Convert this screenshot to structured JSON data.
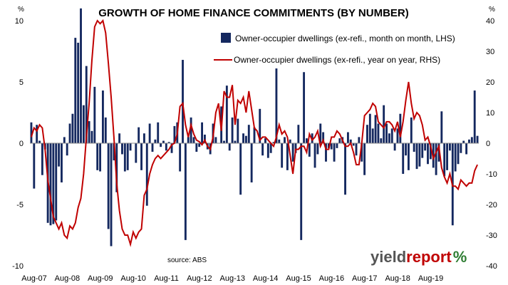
{
  "chart_data": {
    "type": "bar",
    "title": "GROWTH OF HOME FINANCE COMMITMENTS (BY NUMBER)",
    "y_left_unit": "%",
    "y_right_unit": "%",
    "ylim_left": [
      -10,
      10
    ],
    "ylim_right": [
      -40,
      40
    ],
    "y_left_ticks": [
      -10,
      -5,
      0,
      5,
      10
    ],
    "y_right_ticks": [
      -40,
      -30,
      -20,
      -10,
      0,
      10,
      20,
      30,
      40
    ],
    "x_tick_labels": [
      "Aug-07",
      "Aug-08",
      "Aug-09",
      "Aug-10",
      "Aug-11",
      "Aug-12",
      "Aug-13",
      "Aug-14",
      "Aug-15",
      "Aug-16",
      "Aug-17",
      "Aug-18",
      "Aug-19"
    ],
    "x_start": "Aug-07",
    "legend_position": "top-right",
    "grid": false,
    "series": [
      {
        "name": "Owner-occupier dwellings (ex-refi., month on month, LHS)",
        "type": "bar",
        "axis": "left",
        "color": "#14285f",
        "values": [
          1.7,
          -3.7,
          1.5,
          0.2,
          -2.6,
          -0.5,
          -6.5,
          -6.7,
          -6.6,
          -6.3,
          -1.9,
          -3.2,
          0.5,
          -1.0,
          1.6,
          2.4,
          8.6,
          8.2,
          11.0,
          3.1,
          6.3,
          1.8,
          1.0,
          4.6,
          -2.2,
          -2.3,
          4.3,
          2.1,
          -7.0,
          -8.4,
          -1.4,
          -4.0,
          0.8,
          -0.9,
          -2.3,
          -2.2,
          -0.6,
          0.0,
          -1.6,
          1.3,
          -2.2,
          0.8,
          -5.1,
          1.6,
          -0.7,
          0.3,
          1.7,
          -0.3,
          0.2,
          -0.6,
          0.1,
          -0.8,
          1.4,
          1.7,
          -2.3,
          6.8,
          -7.9,
          0.5,
          2.1,
          0.5,
          -0.7,
          -0.3,
          1.7,
          0.7,
          -0.5,
          -0.9,
          1.6,
          0.5,
          0.0,
          3.0,
          0.2,
          4.7,
          -0.6,
          2.1,
          0.2,
          2.0,
          -4.2,
          0.8,
          0.6,
          1.5,
          -3.2,
          1.3,
          0.0,
          2.8,
          -1.0,
          0.4,
          -1.2,
          -0.8,
          0.1,
          6.1,
          0.3,
          -2.0,
          0.5,
          -2.2,
          0.3,
          -1.5,
          -0.8,
          1.5,
          -7.9,
          5.8,
          0.4,
          -1.1,
          0.8,
          -2.0,
          -0.9,
          1.6,
          0.9,
          -1.5,
          -0.4,
          -0.5,
          -1.5,
          -0.4,
          0.4,
          0.5,
          -4.2,
          0.9,
          0.3,
          -0.2,
          -1.0,
          0.5,
          -1.5,
          -2.6,
          1.5,
          2.4,
          1.2,
          2.3,
          1.6,
          0.4,
          3.1,
          1.6,
          0.8,
          1.2,
          -0.6,
          1.2,
          2.4,
          -2.5,
          -1.0,
          -2.2,
          2.1,
          -0.7,
          -2.1,
          -1.9,
          -1.2,
          -0.6,
          -1.7,
          -1.3,
          -2.0,
          -2.6,
          -1.5,
          2.6,
          -2.7,
          -2.2,
          -0.6,
          -6.7,
          -2.3,
          -1.7,
          -0.8,
          0.2,
          -0.9,
          0.3,
          0.5,
          4.3,
          0.6
        ]
      },
      {
        "name": "Owner-occupier dwellings (ex-refi., year on year, RHS)",
        "type": "line",
        "axis": "right",
        "color": "#c00000",
        "values": [
          2.0,
          5.0,
          4.0,
          6.0,
          5.0,
          -2.0,
          -12.0,
          -18.0,
          -24.0,
          -26.0,
          -28.0,
          -26.0,
          -30.0,
          -31.0,
          -27.0,
          -28.0,
          -26.0,
          -21.0,
          -18.0,
          -10.0,
          2.0,
          13.0,
          27.0,
          38.0,
          40.0,
          39.0,
          40.0,
          36.0,
          26.0,
          15.0,
          2.0,
          -13.0,
          -22.0,
          -28.0,
          -30.0,
          -30.0,
          -33.0,
          -29.0,
          -31.0,
          -29.0,
          -28.0,
          -17.0,
          -15.0,
          -10.0,
          -7.0,
          -5.0,
          -4.0,
          -5.0,
          -4.0,
          -3.0,
          -2.0,
          -0.5,
          0.0,
          3.0,
          12.0,
          13.0,
          6.0,
          2.0,
          6.0,
          3.0,
          1.0,
          0.5,
          -0.5,
          1.0,
          -1.0,
          -2.0,
          2.0,
          10.0,
          13.0,
          4.0,
          17.0,
          15.0,
          15.0,
          19.0,
          6.0,
          14.0,
          13.0,
          15.0,
          10.0,
          17.0,
          11.0,
          5.0,
          4.0,
          1.0,
          2.0,
          2.0,
          1.0,
          0.0,
          -1.0,
          2.0,
          6.0,
          3.0,
          4.0,
          2.0,
          -4.0,
          -10.0,
          -2.0,
          -2.0,
          -1.0,
          -1.0,
          -3.0,
          3.0,
          1.0,
          2.0,
          4.0,
          -1.0,
          1.0,
          -2.0,
          -2.0,
          2.0,
          2.0,
          4.0,
          3.0,
          1.0,
          -1.0,
          -1.0,
          0.0,
          -3.0,
          -7.0,
          -7.0,
          0.0,
          9.0,
          10.0,
          11.0,
          13.0,
          12.0,
          7.0,
          6.0,
          5.0,
          7.0,
          7.0,
          6.0,
          4.0,
          7.0,
          2.0,
          7.0,
          14.0,
          20.0,
          13.0,
          8.0,
          10.0,
          9.0,
          6.0,
          1.0,
          2.0,
          -1.0,
          -5.0,
          -3.0,
          -1.0,
          -8.0,
          -11.0,
          -13.0,
          -10.0,
          -14.0,
          -14.0,
          -15.0,
          -12.0,
          -13.0,
          -14.0,
          -13.0,
          -13.0,
          -9.0,
          -7.0
        ]
      }
    ]
  },
  "source_text": "source: ABS",
  "brand": {
    "part1": "yield",
    "part2": "report",
    "part3": "%"
  }
}
